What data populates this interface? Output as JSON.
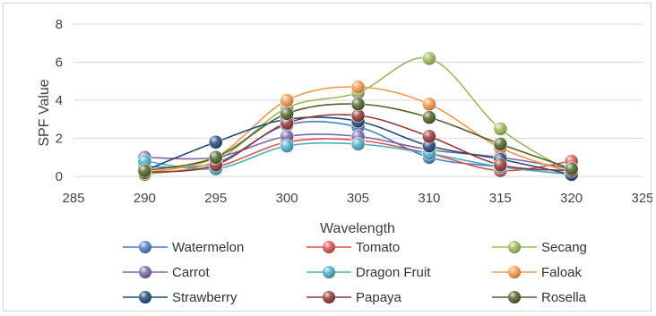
{
  "chart_data": {
    "type": "line",
    "xlabel": "Wavelength",
    "ylabel": "SPF Value",
    "xlim": [
      285,
      325
    ],
    "ylim": [
      0,
      8
    ],
    "x_ticks": [
      285,
      290,
      295,
      300,
      305,
      310,
      315,
      320,
      325
    ],
    "y_ticks": [
      0,
      2,
      4,
      6,
      8
    ],
    "x": [
      290,
      295,
      300,
      305,
      310,
      315,
      320
    ],
    "grid": "horizontal",
    "legend_position": "bottom",
    "series": [
      {
        "name": "Watermelon",
        "color": "#4a7fc1",
        "values": [
          0.5,
          0.7,
          2.7,
          2.6,
          1.0,
          0.5,
          0.1
        ]
      },
      {
        "name": "Tomato",
        "color": "#d9534f",
        "values": [
          0.2,
          0.5,
          1.8,
          1.9,
          1.2,
          0.3,
          0.8
        ]
      },
      {
        "name": "Secang",
        "color": "#9bbb59",
        "values": [
          0.1,
          0.8,
          3.6,
          4.4,
          6.2,
          2.5,
          0.2
        ]
      },
      {
        "name": "Carrot",
        "color": "#8064a2",
        "values": [
          1.0,
          1.0,
          2.1,
          2.1,
          1.4,
          1.0,
          0.4
        ]
      },
      {
        "name": "Dragon Fruit",
        "color": "#4bacc6",
        "values": [
          0.8,
          0.4,
          1.6,
          1.7,
          1.2,
          0.5,
          0.1
        ]
      },
      {
        "name": "Faloak",
        "color": "#f79646",
        "values": [
          0.2,
          1.0,
          4.0,
          4.7,
          3.8,
          1.5,
          0.2
        ]
      },
      {
        "name": "Strawberry",
        "color": "#1f497d",
        "values": [
          0.3,
          1.8,
          3.0,
          2.9,
          1.6,
          0.9,
          0.1
        ]
      },
      {
        "name": "Papaya",
        "color": "#943634",
        "values": [
          0.2,
          0.6,
          2.8,
          3.2,
          2.1,
          0.6,
          0.3
        ]
      },
      {
        "name": "Rosella",
        "color": "#4f6228",
        "values": [
          0.3,
          1.0,
          3.3,
          3.8,
          3.1,
          1.7,
          0.4
        ]
      }
    ]
  }
}
